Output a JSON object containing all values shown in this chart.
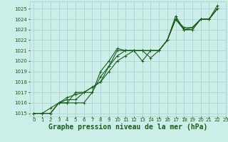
{
  "title": "Graphe pression niveau de la mer (hPa)",
  "bg_color": "#cceee8",
  "grid_color": "#aacccc",
  "line_color": "#1a5c1a",
  "ylim": [
    1015,
    1025.5
  ],
  "xlim": [
    -0.5,
    23
  ],
  "yticks": [
    1015,
    1016,
    1017,
    1018,
    1019,
    1020,
    1021,
    1022,
    1023,
    1024,
    1025
  ],
  "xticks": [
    0,
    1,
    2,
    3,
    4,
    5,
    6,
    7,
    8,
    9,
    10,
    11,
    12,
    13,
    14,
    15,
    16,
    17,
    18,
    19,
    20,
    21,
    22,
    23
  ],
  "series": [
    [
      1015,
      1015,
      1015,
      1016,
      1016,
      1016,
      1016,
      1017,
      1019,
      1020,
      1021.2,
      1021,
      1021,
      1021,
      1020.3,
      1021,
      1022,
      1024.3,
      1023,
      1023,
      1024,
      1024,
      1025.3
    ],
    [
      1015,
      1015,
      1015,
      1016,
      1016.3,
      1016.3,
      1017,
      1017,
      1018.5,
      1019.5,
      1020.5,
      1021,
      1021,
      1021,
      1021,
      1021,
      1022,
      1024,
      1023.2,
      1023.2,
      1024,
      1024,
      1025
    ],
    [
      1015,
      1015,
      1015,
      1016,
      1016,
      1017,
      1017,
      1017.5,
      1018,
      1019.5,
      1021,
      1021,
      1021,
      1020,
      1021,
      1021,
      1022,
      1024,
      1023,
      1023.2,
      1024,
      1024,
      1025
    ],
    [
      1015,
      1015,
      1015.5,
      1016,
      1016.5,
      1016.8,
      1017,
      1017.5,
      1018,
      1019,
      1020,
      1020.5,
      1021,
      1021,
      1021,
      1021,
      1022,
      1024,
      1023,
      1023,
      1024,
      1024,
      1025
    ]
  ],
  "marker": "+",
  "markersize": 3,
  "linewidth": 0.8,
  "title_fontsize": 7,
  "tick_fontsize": 5
}
